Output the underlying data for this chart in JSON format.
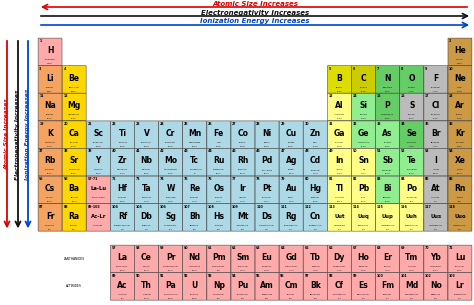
{
  "arrow_atomic_size_text": "Atomic Size Increases",
  "arrow_electronegativity_text": "Electronegativity Increases",
  "arrow_ionization_text": "Ionization Energy Increases",
  "arrow_atomic_size_color": "#dd0000",
  "arrow_electronegativity_color": "#111111",
  "arrow_ionization_color": "#0044cc",
  "colors": {
    "alkali": "#f4a460",
    "alkaline": "#ffd700",
    "transition": "#add8e6",
    "basic_metal": "#ffff88",
    "semimetal_yellow": "#dddd00",
    "semimetal_green": "#90ee90",
    "nonmetal_yellow": "#cccc00",
    "nonmetal_green": "#66cc66",
    "halogen": "#bbbbbb",
    "noble": "#cc9944",
    "lanthanide": "#ffaaaa",
    "actinide": "#ffaaaa",
    "hydrogen": "#ffaaaa",
    "unknown": "#cccccc"
  },
  "element_colors": {
    "H": "hydrogen",
    "He": "noble",
    "Li": "alkali",
    "Be": "alkaline",
    "B": "semimetal_yellow",
    "C": "nonmetal_yellow",
    "N": "nonmetal_green",
    "O": "nonmetal_green",
    "F": "halogen",
    "Ne": "noble",
    "Na": "alkali",
    "Mg": "alkaline",
    "Al": "basic_metal",
    "Si": "semimetal_green",
    "P": "nonmetal_green",
    "S": "halogen",
    "Cl": "halogen",
    "Ar": "noble",
    "K": "alkali",
    "Ca": "alkaline",
    "Sc": "transition",
    "Ti": "transition",
    "V": "transition",
    "Cr": "transition",
    "Mn": "transition",
    "Fe": "transition",
    "Co": "transition",
    "Ni": "transition",
    "Cu": "transition",
    "Zn": "transition",
    "Ga": "basic_metal",
    "Ge": "semimetal_green",
    "As": "semimetal_green",
    "Se": "nonmetal_green",
    "Br": "halogen",
    "Kr": "noble",
    "Rb": "alkali",
    "Sr": "alkaline",
    "Y": "transition",
    "Zr": "transition",
    "Nb": "transition",
    "Mo": "transition",
    "Tc": "transition",
    "Ru": "transition",
    "Rh": "transition",
    "Pd": "transition",
    "Ag": "transition",
    "Cd": "transition",
    "In": "basic_metal",
    "Sn": "basic_metal",
    "Sb": "semimetal_green",
    "Te": "semimetal_green",
    "I": "halogen",
    "Xe": "noble",
    "Cs": "alkali",
    "Ba": "alkaline",
    "La-Lu": "lanthanide",
    "Hf": "transition",
    "Ta": "transition",
    "W": "transition",
    "Re": "transition",
    "Os": "transition",
    "Ir": "transition",
    "Pt": "transition",
    "Au": "transition",
    "Hg": "transition",
    "Tl": "basic_metal",
    "Pb": "basic_metal",
    "Bi": "semimetal_green",
    "Po": "basic_metal",
    "At": "halogen",
    "Rn": "noble",
    "Fr": "alkali",
    "Ra": "alkaline",
    "Ac-Lr": "actinide",
    "Rf": "transition",
    "Db": "transition",
    "Sg": "transition",
    "Bh": "transition",
    "Hs": "transition",
    "Mt": "transition",
    "Ds": "transition",
    "Rg": "transition",
    "Cn": "transition",
    "Uut": "basic_metal",
    "Uuq": "basic_metal",
    "Uup": "basic_metal",
    "Uuh": "basic_metal",
    "Uus": "halogen",
    "Uuo": "noble",
    "La": "lanthanide",
    "Ce": "lanthanide",
    "Pr": "lanthanide",
    "Nd": "lanthanide",
    "Pm": "lanthanide",
    "Sm": "lanthanide",
    "Eu": "lanthanide",
    "Gd": "lanthanide",
    "Tb": "lanthanide",
    "Dy": "lanthanide",
    "Ho": "lanthanide",
    "Er": "lanthanide",
    "Tm": "lanthanide",
    "Yb": "lanthanide",
    "Lu": "lanthanide",
    "Ac": "actinide",
    "Th": "actinide",
    "Pa": "actinide",
    "U": "actinide",
    "Np": "actinide",
    "Pu": "actinide",
    "Am": "actinide",
    "Cm": "actinide",
    "Bk": "actinide",
    "Cf": "actinide",
    "Es": "actinide",
    "Fm": "actinide",
    "Md": "actinide",
    "No": "actinide",
    "Lr": "actinide"
  },
  "elements": [
    {
      "symbol": "H",
      "name": "HYDROGEN",
      "num": "1",
      "mass": "1.008",
      "col": 0,
      "row": 0
    },
    {
      "symbol": "He",
      "name": "HELIUM",
      "num": "2",
      "mass": "4.003",
      "col": 17,
      "row": 0
    },
    {
      "symbol": "Li",
      "name": "LITHIUM",
      "num": "3",
      "mass": "6.941",
      "col": 0,
      "row": 1
    },
    {
      "symbol": "Be",
      "name": "BERYLLIUM",
      "num": "4",
      "mass": "9.012",
      "col": 1,
      "row": 1
    },
    {
      "symbol": "B",
      "name": "BORON",
      "num": "5",
      "mass": "10.81",
      "col": 12,
      "row": 1
    },
    {
      "symbol": "C",
      "name": "CARBON",
      "num": "6",
      "mass": "12.01",
      "col": 13,
      "row": 1
    },
    {
      "symbol": "N",
      "name": "NITROGEN",
      "num": "7",
      "mass": "14.01",
      "col": 14,
      "row": 1
    },
    {
      "symbol": "O",
      "name": "OXYGEN",
      "num": "8",
      "mass": "16.00",
      "col": 15,
      "row": 1
    },
    {
      "symbol": "F",
      "name": "FLUORINE",
      "num": "9",
      "mass": "19.00",
      "col": 16,
      "row": 1
    },
    {
      "symbol": "Ne",
      "name": "NEON",
      "num": "10",
      "mass": "20.18",
      "col": 17,
      "row": 1
    },
    {
      "symbol": "Na",
      "name": "SODIUM",
      "num": "11",
      "mass": "22.99",
      "col": 0,
      "row": 2
    },
    {
      "symbol": "Mg",
      "name": "MAGNESIUM",
      "num": "12",
      "mass": "24.31",
      "col": 1,
      "row": 2
    },
    {
      "symbol": "Al",
      "name": "ALUMINUM",
      "num": "13",
      "mass": "26.98",
      "col": 12,
      "row": 2
    },
    {
      "symbol": "Si",
      "name": "SILICON",
      "num": "14",
      "mass": "28.09",
      "col": 13,
      "row": 2
    },
    {
      "symbol": "P",
      "name": "PHOSPHORUS",
      "num": "15",
      "mass": "30.97",
      "col": 14,
      "row": 2
    },
    {
      "symbol": "S",
      "name": "SULFUR",
      "num": "16",
      "mass": "32.07",
      "col": 15,
      "row": 2
    },
    {
      "symbol": "Cl",
      "name": "CHLORINE",
      "num": "17",
      "mass": "35.45",
      "col": 16,
      "row": 2
    },
    {
      "symbol": "Ar",
      "name": "ARGON",
      "num": "18",
      "mass": "39.95",
      "col": 17,
      "row": 2
    },
    {
      "symbol": "K",
      "name": "POTASSIUM",
      "num": "19",
      "mass": "39.10",
      "col": 0,
      "row": 3
    },
    {
      "symbol": "Ca",
      "name": "CALCIUM",
      "num": "20",
      "mass": "40.08",
      "col": 1,
      "row": 3
    },
    {
      "symbol": "Sc",
      "name": "SCANDIUM",
      "num": "21",
      "mass": "44.96",
      "col": 2,
      "row": 3
    },
    {
      "symbol": "Ti",
      "name": "TITANIUM",
      "num": "22",
      "mass": "47.87",
      "col": 3,
      "row": 3
    },
    {
      "symbol": "V",
      "name": "VANADIUM",
      "num": "23",
      "mass": "50.94",
      "col": 4,
      "row": 3
    },
    {
      "symbol": "Cr",
      "name": "CHROMIUM",
      "num": "24",
      "mass": "52.00",
      "col": 5,
      "row": 3
    },
    {
      "symbol": "Mn",
      "name": "MANGANESE",
      "num": "25",
      "mass": "54.94",
      "col": 6,
      "row": 3
    },
    {
      "symbol": "Fe",
      "name": "IRON",
      "num": "26",
      "mass": "55.85",
      "col": 7,
      "row": 3
    },
    {
      "symbol": "Co",
      "name": "COBALT",
      "num": "27",
      "mass": "58.93",
      "col": 8,
      "row": 3
    },
    {
      "symbol": "Ni",
      "name": "NICKEL",
      "num": "28",
      "mass": "58.69",
      "col": 9,
      "row": 3
    },
    {
      "symbol": "Cu",
      "name": "COPPER",
      "num": "29",
      "mass": "63.55",
      "col": 10,
      "row": 3
    },
    {
      "symbol": "Zn",
      "name": "ZINC",
      "num": "30",
      "mass": "65.38",
      "col": 11,
      "row": 3
    },
    {
      "symbol": "Ga",
      "name": "GALLIUM",
      "num": "31",
      "mass": "69.72",
      "col": 12,
      "row": 3
    },
    {
      "symbol": "Ge",
      "name": "GERMANIUM",
      "num": "32",
      "mass": "72.63",
      "col": 13,
      "row": 3
    },
    {
      "symbol": "As",
      "name": "ARSENIC",
      "num": "33",
      "mass": "74.92",
      "col": 14,
      "row": 3
    },
    {
      "symbol": "Se",
      "name": "SELENIUM",
      "num": "34",
      "mass": "78.97",
      "col": 15,
      "row": 3
    },
    {
      "symbol": "Br",
      "name": "BROMINE",
      "num": "35",
      "mass": "79.90",
      "col": 16,
      "row": 3
    },
    {
      "symbol": "Kr",
      "name": "KRYPTON",
      "num": "36",
      "mass": "83.80",
      "col": 17,
      "row": 3
    },
    {
      "symbol": "Rb",
      "name": "RUBIDIUM",
      "num": "37",
      "mass": "85.47",
      "col": 0,
      "row": 4
    },
    {
      "symbol": "Sr",
      "name": "STRONTIUM",
      "num": "38",
      "mass": "87.62",
      "col": 1,
      "row": 4
    },
    {
      "symbol": "Y",
      "name": "YTTRIUM",
      "num": "39",
      "mass": "88.91",
      "col": 2,
      "row": 4
    },
    {
      "symbol": "Zr",
      "name": "ZIRCONIUM",
      "num": "40",
      "mass": "91.22",
      "col": 3,
      "row": 4
    },
    {
      "symbol": "Nb",
      "name": "NIOBIUM",
      "num": "41",
      "mass": "92.91",
      "col": 4,
      "row": 4
    },
    {
      "symbol": "Mo",
      "name": "MOLYBDENUM",
      "num": "42",
      "mass": "95.96",
      "col": 5,
      "row": 4
    },
    {
      "symbol": "Tc",
      "name": "TECHNETIUM",
      "num": "43",
      "mass": "98",
      "col": 6,
      "row": 4
    },
    {
      "symbol": "Ru",
      "name": "RUTHENIUM",
      "num": "44",
      "mass": "101.1",
      "col": 7,
      "row": 4
    },
    {
      "symbol": "Rh",
      "name": "RHODIUM",
      "num": "45",
      "mass": "102.9",
      "col": 8,
      "row": 4
    },
    {
      "symbol": "Pd",
      "name": "PALLADIUM",
      "num": "46",
      "mass": "106.4",
      "col": 9,
      "row": 4
    },
    {
      "symbol": "Ag",
      "name": "SILVER",
      "num": "47",
      "mass": "107.9",
      "col": 10,
      "row": 4
    },
    {
      "symbol": "Cd",
      "name": "CADMIUM",
      "num": "48",
      "mass": "112.4",
      "col": 11,
      "row": 4
    },
    {
      "symbol": "In",
      "name": "INDIUM",
      "num": "49",
      "mass": "114.8",
      "col": 12,
      "row": 4
    },
    {
      "symbol": "Sn",
      "name": "TIN",
      "num": "50",
      "mass": "118.7",
      "col": 13,
      "row": 4
    },
    {
      "symbol": "Sb",
      "name": "ANTIMONY",
      "num": "51",
      "mass": "121.8",
      "col": 14,
      "row": 4
    },
    {
      "symbol": "Te",
      "name": "TELLURIUM",
      "num": "52",
      "mass": "127.6",
      "col": 15,
      "row": 4
    },
    {
      "symbol": "I",
      "name": "IODINE",
      "num": "53",
      "mass": "126.9",
      "col": 16,
      "row": 4
    },
    {
      "symbol": "Xe",
      "name": "XENON",
      "num": "54",
      "mass": "131.3",
      "col": 17,
      "row": 4
    },
    {
      "symbol": "Cs",
      "name": "CESIUM",
      "num": "55",
      "mass": "132.9",
      "col": 0,
      "row": 5
    },
    {
      "symbol": "Ba",
      "name": "BARIUM",
      "num": "56",
      "mass": "137.3",
      "col": 1,
      "row": 5
    },
    {
      "symbol": "La-Lu",
      "name": "LANTHANIDES",
      "num": "57-71",
      "mass": "",
      "col": 2,
      "row": 5
    },
    {
      "symbol": "Hf",
      "name": "HAFNIUM",
      "num": "72",
      "mass": "178.5",
      "col": 3,
      "row": 5
    },
    {
      "symbol": "Ta",
      "name": "TANTALUM",
      "num": "73",
      "mass": "180.9",
      "col": 4,
      "row": 5
    },
    {
      "symbol": "W",
      "name": "TUNGSTEN",
      "num": "74",
      "mass": "183.8",
      "col": 5,
      "row": 5
    },
    {
      "symbol": "Re",
      "name": "RHENIUM",
      "num": "75",
      "mass": "186.2",
      "col": 6,
      "row": 5
    },
    {
      "symbol": "Os",
      "name": "OSMIUM",
      "num": "76",
      "mass": "190.2",
      "col": 7,
      "row": 5
    },
    {
      "symbol": "Ir",
      "name": "IRIDIUM",
      "num": "77",
      "mass": "192.2",
      "col": 8,
      "row": 5
    },
    {
      "symbol": "Pt",
      "name": "PLATINUM",
      "num": "78",
      "mass": "195.1",
      "col": 9,
      "row": 5
    },
    {
      "symbol": "Au",
      "name": "GOLD",
      "num": "79",
      "mass": "197.0",
      "col": 10,
      "row": 5
    },
    {
      "symbol": "Hg",
      "name": "MERCURY",
      "num": "80",
      "mass": "200.6",
      "col": 11,
      "row": 5
    },
    {
      "symbol": "Tl",
      "name": "THALLIUM",
      "num": "81",
      "mass": "204.4",
      "col": 12,
      "row": 5
    },
    {
      "symbol": "Pb",
      "name": "LEAD",
      "num": "82",
      "mass": "207.2",
      "col": 13,
      "row": 5
    },
    {
      "symbol": "Bi",
      "name": "BISMUTH",
      "num": "83",
      "mass": "209.0",
      "col": 14,
      "row": 5
    },
    {
      "symbol": "Po",
      "name": "POLONIUM",
      "num": "84",
      "mass": "209",
      "col": 15,
      "row": 5
    },
    {
      "symbol": "At",
      "name": "ASTATINE",
      "num": "85",
      "mass": "210",
      "col": 16,
      "row": 5
    },
    {
      "symbol": "Rn",
      "name": "RADON",
      "num": "86",
      "mass": "222",
      "col": 17,
      "row": 5
    },
    {
      "symbol": "Fr",
      "name": "FRANCIUM",
      "num": "87",
      "mass": "223",
      "col": 0,
      "row": 6
    },
    {
      "symbol": "Ra",
      "name": "RADIUM",
      "num": "88",
      "mass": "226",
      "col": 1,
      "row": 6
    },
    {
      "symbol": "Ac-Lr",
      "name": "ACTINIDES",
      "num": "89-103",
      "mass": "",
      "col": 2,
      "row": 6
    },
    {
      "symbol": "Rf",
      "name": "RUTHERFORDIUM",
      "num": "104",
      "mass": "267",
      "col": 3,
      "row": 6
    },
    {
      "symbol": "Db",
      "name": "DUBNIUM",
      "num": "105",
      "mass": "268",
      "col": 4,
      "row": 6
    },
    {
      "symbol": "Sg",
      "name": "SEABORGIUM",
      "num": "106",
      "mass": "271",
      "col": 5,
      "row": 6
    },
    {
      "symbol": "Bh",
      "name": "BOHRIUM",
      "num": "107",
      "mass": "272",
      "col": 6,
      "row": 6
    },
    {
      "symbol": "Hs",
      "name": "HASSIUM",
      "num": "108",
      "mass": "270",
      "col": 7,
      "row": 6
    },
    {
      "symbol": "Mt",
      "name": "MEITNERIUM",
      "num": "109",
      "mass": "278",
      "col": 8,
      "row": 6
    },
    {
      "symbol": "Ds",
      "name": "DARMSTADTIUM",
      "num": "110",
      "mass": "281",
      "col": 9,
      "row": 6
    },
    {
      "symbol": "Rg",
      "name": "ROENTGENIUM",
      "num": "111",
      "mass": "282",
      "col": 10,
      "row": 6
    },
    {
      "symbol": "Cn",
      "name": "COPERNICIUM",
      "num": "112",
      "mass": "285",
      "col": 11,
      "row": 6
    },
    {
      "symbol": "Uut",
      "name": "UNUNTRIUM",
      "num": "113",
      "mass": "286",
      "col": 12,
      "row": 6
    },
    {
      "symbol": "Uuq",
      "name": "FLEROVIUM",
      "num": "114",
      "mass": "289",
      "col": 13,
      "row": 6
    },
    {
      "symbol": "Uup",
      "name": "UNUNPENTIUM",
      "num": "115",
      "mass": "289",
      "col": 14,
      "row": 6
    },
    {
      "symbol": "Uuh",
      "name": "LIVERMORIUM",
      "num": "116",
      "mass": "292",
      "col": 15,
      "row": 6
    },
    {
      "symbol": "Uus",
      "name": "UNUNSEPTIUM",
      "num": "117",
      "mass": "294",
      "col": 16,
      "row": 6
    },
    {
      "symbol": "Uuo",
      "name": "UNUNOCTIUM",
      "num": "118",
      "mass": "294",
      "col": 17,
      "row": 6
    },
    {
      "symbol": "La",
      "name": "LANTHANUM",
      "num": "57",
      "mass": "138.9",
      "col": 3,
      "row": 8
    },
    {
      "symbol": "Ce",
      "name": "CERIUM",
      "num": "58",
      "mass": "140.1",
      "col": 4,
      "row": 8
    },
    {
      "symbol": "Pr",
      "name": "PRASEODYMIUM",
      "num": "59",
      "mass": "140.9",
      "col": 5,
      "row": 8
    },
    {
      "symbol": "Nd",
      "name": "NEODYMIUM",
      "num": "60",
      "mass": "144.2",
      "col": 6,
      "row": 8
    },
    {
      "symbol": "Pm",
      "name": "PROMETHIUM",
      "num": "61",
      "mass": "145",
      "col": 7,
      "row": 8
    },
    {
      "symbol": "Sm",
      "name": "SAMARIUM",
      "num": "62",
      "mass": "150.4",
      "col": 8,
      "row": 8
    },
    {
      "symbol": "Eu",
      "name": "EUROPIUM",
      "num": "63",
      "mass": "152.0",
      "col": 9,
      "row": 8
    },
    {
      "symbol": "Gd",
      "name": "GADOLINIUM",
      "num": "64",
      "mass": "157.3",
      "col": 10,
      "row": 8
    },
    {
      "symbol": "Tb",
      "name": "TERBIUM",
      "num": "65",
      "mass": "158.9",
      "col": 11,
      "row": 8
    },
    {
      "symbol": "Dy",
      "name": "DYSPROSIUM",
      "num": "66",
      "mass": "162.5",
      "col": 12,
      "row": 8
    },
    {
      "symbol": "Ho",
      "name": "HOLMIUM",
      "num": "67",
      "mass": "164.9",
      "col": 13,
      "row": 8
    },
    {
      "symbol": "Er",
      "name": "ERBIUM",
      "num": "68",
      "mass": "167.3",
      "col": 14,
      "row": 8
    },
    {
      "symbol": "Tm",
      "name": "THULIUM",
      "num": "69",
      "mass": "168.9",
      "col": 15,
      "row": 8
    },
    {
      "symbol": "Yb",
      "name": "YTTERBIUM",
      "num": "70",
      "mass": "173.1",
      "col": 16,
      "row": 8
    },
    {
      "symbol": "Lu",
      "name": "LUTETIUM",
      "num": "71",
      "mass": "175.0",
      "col": 17,
      "row": 8
    },
    {
      "symbol": "Ac",
      "name": "ACTINIUM",
      "num": "89",
      "mass": "227",
      "col": 3,
      "row": 9
    },
    {
      "symbol": "Th",
      "name": "THORIUM",
      "num": "90",
      "mass": "232.0",
      "col": 4,
      "row": 9
    },
    {
      "symbol": "Pa",
      "name": "PROTACTINIUM",
      "num": "91",
      "mass": "231.0",
      "col": 5,
      "row": 9
    },
    {
      "symbol": "U",
      "name": "URANIUM",
      "num": "92",
      "mass": "238.0",
      "col": 6,
      "row": 9
    },
    {
      "symbol": "Np",
      "name": "NEPTUNIUM",
      "num": "93",
      "mass": "237",
      "col": 7,
      "row": 9
    },
    {
      "symbol": "Pu",
      "name": "PLUTONIUM",
      "num": "94",
      "mass": "244",
      "col": 8,
      "row": 9
    },
    {
      "symbol": "Am",
      "name": "AMERICIUM",
      "num": "95",
      "mass": "243",
      "col": 9,
      "row": 9
    },
    {
      "symbol": "Cm",
      "name": "CURIUM",
      "num": "96",
      "mass": "247",
      "col": 10,
      "row": 9
    },
    {
      "symbol": "Bk",
      "name": "BERKELIUM",
      "num": "97",
      "mass": "247",
      "col": 11,
      "row": 9
    },
    {
      "symbol": "Cf",
      "name": "CALIFORNIUM",
      "num": "98",
      "mass": "251",
      "col": 12,
      "row": 9
    },
    {
      "symbol": "Es",
      "name": "EINSTEINIUM",
      "num": "99",
      "mass": "252",
      "col": 13,
      "row": 9
    },
    {
      "symbol": "Fm",
      "name": "FERMIUM",
      "num": "100",
      "mass": "257",
      "col": 14,
      "row": 9
    },
    {
      "symbol": "Md",
      "name": "MENDELEVIUM",
      "num": "101",
      "mass": "258",
      "col": 15,
      "row": 9
    },
    {
      "symbol": "No",
      "name": "NOBELIUM",
      "num": "102",
      "mass": "259",
      "col": 16,
      "row": 9
    },
    {
      "symbol": "Lr",
      "name": "LAWRENCIUM",
      "num": "103",
      "mass": "262",
      "col": 17,
      "row": 9
    }
  ]
}
